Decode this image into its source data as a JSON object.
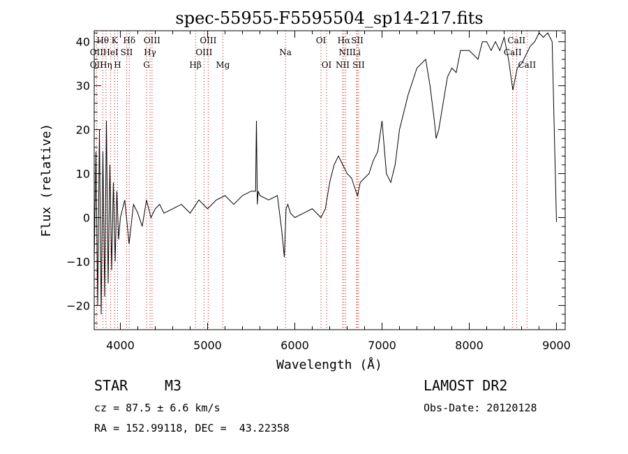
{
  "chart_data": {
    "type": "line",
    "title": "spec-55955-F5595504_sp14-217.fits",
    "xlabel": "Wavelength (Å)",
    "ylabel": "Flux (relative)",
    "xlim": [
      3700,
      9100
    ],
    "ylim": [
      -25.5,
      42.5
    ],
    "xticks": [
      4000,
      5000,
      6000,
      7000,
      8000,
      9000
    ],
    "yticks": [
      -20,
      -10,
      0,
      10,
      20,
      30,
      40
    ],
    "grid": false,
    "series": [
      {
        "x": [
          3700,
          3720,
          3740,
          3760,
          3780,
          3800,
          3820,
          3840,
          3860,
          3880,
          3900,
          3920,
          3940,
          3960,
          3980,
          4000,
          4050,
          4100,
          4150,
          4200,
          4250,
          4300,
          4350,
          4400,
          4450,
          4500,
          4600,
          4700,
          4800,
          4900,
          5000,
          5100,
          5200,
          5300,
          5400,
          5500,
          5550,
          5560,
          5570,
          5580,
          5600,
          5700,
          5800,
          5850,
          5880,
          5900,
          5920,
          5950,
          6000,
          6100,
          6200,
          6300,
          6350,
          6400,
          6450,
          6500,
          6550,
          6600,
          6650,
          6700,
          6720,
          6750,
          6800,
          6850,
          6900,
          6950,
          7000,
          7050,
          7100,
          7150,
          7200,
          7250,
          7300,
          7350,
          7400,
          7450,
          7500,
          7550,
          7600,
          7620,
          7650,
          7700,
          7750,
          7800,
          7850,
          7900,
          8000,
          8100,
          8150,
          8200,
          8250,
          8300,
          8350,
          8400,
          8450,
          8500,
          8520,
          8550,
          8600,
          8650,
          8700,
          8750,
          8800,
          8850,
          8900,
          8950,
          9000
        ],
        "y": [
          -10,
          15,
          -20,
          20,
          -22,
          15,
          -18,
          22,
          -15,
          12,
          -12,
          8,
          -10,
          6,
          -5,
          0,
          4,
          -6,
          3,
          1,
          -2,
          4,
          0,
          2,
          3,
          1,
          2,
          3,
          1,
          4,
          2,
          4,
          5,
          3,
          5,
          6,
          6,
          22,
          3,
          6,
          5,
          4,
          5,
          -3,
          -9,
          2,
          3,
          1,
          0,
          1,
          2,
          0,
          2,
          8,
          12,
          14,
          12,
          10,
          9,
          6,
          5,
          8,
          9,
          10,
          13,
          15,
          22,
          10,
          8,
          12,
          20,
          24,
          28,
          31,
          34,
          35,
          36,
          30,
          22,
          18,
          20,
          26,
          32,
          34,
          33,
          38,
          38,
          36,
          40,
          40,
          38,
          40,
          38,
          41,
          36,
          29,
          31,
          34,
          35,
          37,
          39,
          40,
          42,
          41,
          42,
          40,
          -1
        ]
      }
    ],
    "line_annotations": [
      {
        "label": "Hθ",
        "x": 3798,
        "row": 1
      },
      {
        "label": "K",
        "x": 3934,
        "row": 1
      },
      {
        "label": "Hδ",
        "x": 4102,
        "row": 1
      },
      {
        "label": "OIII",
        "x": 4363,
        "row": 1
      },
      {
        "label": "OIII",
        "x": 5007,
        "row": 1
      },
      {
        "label": "OI",
        "x": 6300,
        "row": 1
      },
      {
        "label": "Hα",
        "x": 6563,
        "row": 1
      },
      {
        "label": "SII",
        "x": 6716,
        "row": 1
      },
      {
        "label": "CaII",
        "x": 8542,
        "row": 1
      },
      {
        "label": "OII",
        "x": 3727,
        "row": 2
      },
      {
        "label": "HeI",
        "x": 3889,
        "row": 2
      },
      {
        "label": "SII",
        "x": 4072,
        "row": 2
      },
      {
        "label": "Hγ",
        "x": 4340,
        "row": 2
      },
      {
        "label": "OIII",
        "x": 4959,
        "row": 2
      },
      {
        "label": "Na",
        "x": 5893,
        "row": 2
      },
      {
        "label": "NII",
        "x": 6584,
        "row": 2
      },
      {
        "label": "Li",
        "x": 6708,
        "row": 2
      },
      {
        "label": "CaII",
        "x": 8498,
        "row": 2
      },
      {
        "label": "OII",
        "x": 3727,
        "row": 3
      },
      {
        "label": "Hη",
        "x": 3835,
        "row": 3
      },
      {
        "label": "H",
        "x": 3968,
        "row": 3
      },
      {
        "label": "G",
        "x": 4300,
        "row": 3
      },
      {
        "label": "Hβ",
        "x": 4861,
        "row": 3
      },
      {
        "label": "Mg",
        "x": 5175,
        "row": 3
      },
      {
        "label": "OI",
        "x": 6364,
        "row": 3
      },
      {
        "label": "NII",
        "x": 6548,
        "row": 3
      },
      {
        "label": "SII",
        "x": 6731,
        "row": 3
      },
      {
        "label": "CaII",
        "x": 8662,
        "row": 3
      }
    ]
  },
  "info": {
    "object_class": "STAR",
    "subclass": "M3",
    "survey": "LAMOST DR2",
    "redshift": "cz = 87.5 ± 6.6 km/s",
    "obs_date": "Obs-Date: 20120128",
    "coords": "RA = 152.99118, DEC =  43.22358"
  },
  "colors": {
    "line_marker": "#cc0000",
    "spectrum": "#000000"
  }
}
